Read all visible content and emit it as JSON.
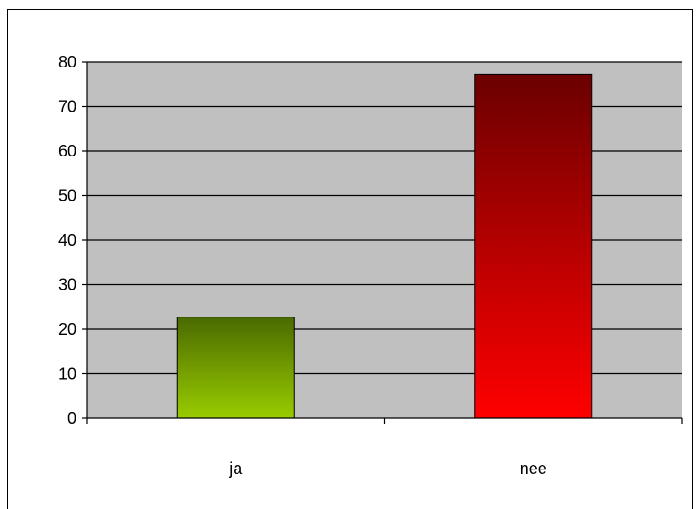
{
  "chart_data": {
    "type": "bar",
    "categories": [
      "ja",
      "nee"
    ],
    "values": [
      22.7,
      77.3
    ],
    "title": "",
    "xlabel": "",
    "ylabel": "",
    "ylim": [
      0,
      80
    ],
    "yticks": [
      "0",
      "10",
      "20",
      "30",
      "40",
      "50",
      "60",
      "70",
      "80"
    ],
    "grid": true,
    "legend": "none",
    "colors": {
      "plot_background": "#c0c0c0",
      "gridline": "#000000",
      "bar_ja_top": "#4a6a00",
      "bar_ja_bottom": "#99cc00",
      "bar_nee_top": "#6b0000",
      "bar_nee_bottom": "#ff0000"
    }
  }
}
